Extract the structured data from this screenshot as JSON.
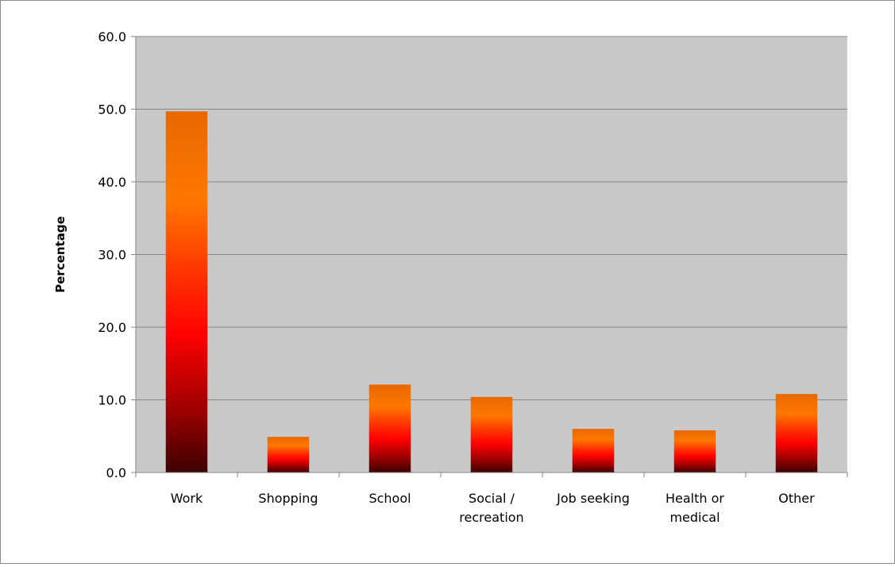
{
  "chart_data": {
    "type": "bar",
    "title": "",
    "xlabel": "",
    "ylabel": "Percentage",
    "ylim": [
      0,
      60
    ],
    "yticks": [
      "0.0",
      "10.0",
      "20.0",
      "30.0",
      "40.0",
      "50.0",
      "60.0"
    ],
    "grid": true,
    "legend": "none",
    "categories": [
      [
        "Work"
      ],
      [
        "Shopping"
      ],
      [
        "School"
      ],
      [
        "Social /",
        "recreation"
      ],
      [
        "Job seeking"
      ],
      [
        "Health or",
        "medical"
      ],
      [
        "Other"
      ]
    ],
    "values": [
      49.7,
      4.9,
      12.1,
      10.4,
      6.0,
      5.8,
      10.8
    ],
    "colors": {
      "plot_background": "#c9c9c9",
      "gridline": "#868686",
      "bar_gradient": [
        "#3d0000",
        "#a00000",
        "#ff0000",
        "#ff3300",
        "#ff7700",
        "#e86800"
      ]
    }
  }
}
